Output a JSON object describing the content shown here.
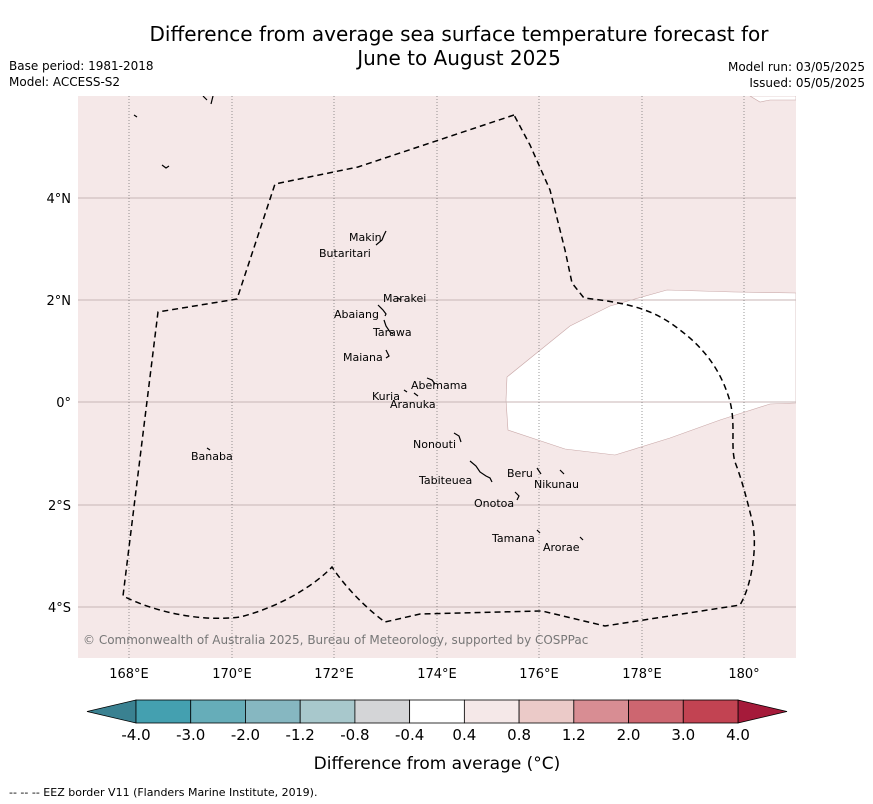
{
  "header": {
    "title_line1": "Difference from average sea surface temperature forecast for",
    "title_line2": "June to August 2025",
    "base_period": "Base period: 1981-2018",
    "model": "Model: ACCESS-S2",
    "model_run": "Model run: 03/05/2025",
    "issued": "Issued: 05/05/2025"
  },
  "map": {
    "lon_ticks": [
      "168°E",
      "170°E",
      "172°E",
      "174°E",
      "176°E",
      "178°E",
      "180°"
    ],
    "lat_ticks": [
      "4°N",
      "2°N",
      "0°",
      "2°S",
      "4°S"
    ],
    "islands": [
      "Makin",
      "Butaritari",
      "Marakei",
      "Abaiang",
      "Tarawa",
      "Maiana",
      "Abemama",
      "Kuria",
      "Aranuka",
      "Nonouti",
      "Tabiteuea",
      "Beru",
      "Nikunau",
      "Onotoa",
      "Tamana",
      "Arorae",
      "Banaba"
    ],
    "copyright": "© Commonwealth of Australia 2025, Bureau of Meteorology, supported by COSPPac",
    "fill_color_main": "#f5e8e8",
    "fill_color_neutral": "#ffffff"
  },
  "colorbar": {
    "labels": [
      "-4.0",
      "-3.0",
      "-2.0",
      "-1.2",
      "-0.8",
      "-0.4",
      "0.4",
      "0.8",
      "1.2",
      "2.0",
      "3.0",
      "4.0"
    ],
    "colors": [
      "#44a0b0",
      "#66adb9",
      "#86b7c1",
      "#a8c8cc",
      "#d4d5d7",
      "#ffffff",
      "#f5e8e8",
      "#ebcac8",
      "#d88d93",
      "#cd6670",
      "#c24352"
    ],
    "under_color": "#3a8191",
    "over_color": "#a51a3a",
    "label": "Difference from average (°C)"
  },
  "footnote": "--  --  -- EEZ border V11 (Flanders Marine Institute, 2019)."
}
